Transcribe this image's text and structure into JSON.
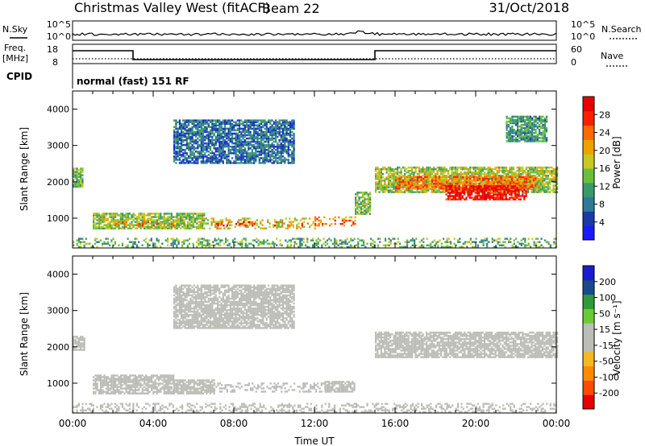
{
  "header": {
    "station": "Christmas Valley West (fitACF)",
    "beam": "Beam 22",
    "date": "31/Oct/2018"
  },
  "top_panels": {
    "nsky_label": "N.Sky",
    "nsky_ticks": [
      "10^5",
      "10^0"
    ],
    "nsearch_label": "N.Search",
    "nsearch_ticks": [
      "10^5",
      "10^0"
    ],
    "freq_label": "Freq.",
    "freq_unit": "[MHz]",
    "freq_ticks": [
      "18",
      "8"
    ],
    "nave_label": "Nave",
    "nave_ticks": [
      "60",
      "0"
    ],
    "cpid_label": "CPID",
    "cpid_text": "normal (fast) 151 RF"
  },
  "colors": {
    "power_scale": [
      "#1a1aff",
      "#1a3aa8",
      "#2e7a9a",
      "#3a9a6a",
      "#6abf3a",
      "#c8c820",
      "#f0a000",
      "#ff6a00",
      "#ff2000",
      "#e80000"
    ],
    "velocity_scale": [
      "#e80000",
      "#ff4a00",
      "#ff8a00",
      "#f5b820",
      "#bdbdb8",
      "#bdbdb8",
      "#6acc32",
      "#2e9a3a",
      "#1a4a8a",
      "#1a1ad0"
    ]
  },
  "chart_data": [
    {
      "type": "heatmap",
      "name": "power",
      "xlabel": "",
      "ylabel": "Slant Range [km]",
      "xlim": [
        0,
        24
      ],
      "ylim": [
        180,
        4500
      ],
      "yticks": [
        1000,
        2000,
        3000,
        4000
      ],
      "colorbar_label": "Power [dB]",
      "colorbar_ticks": [
        4,
        8,
        12,
        16,
        20,
        24,
        28
      ],
      "colorbar_range": [
        0,
        30
      ],
      "regions": [
        {
          "t": [
            0.0,
            0.5
          ],
          "r": [
            1850,
            2350
          ],
          "v": 13
        },
        {
          "t": [
            1.0,
            6.5
          ],
          "r": [
            700,
            1150
          ],
          "v": 14
        },
        {
          "t": [
            2.0,
            5.0
          ],
          "r": [
            780,
            900
          ],
          "v": 21
        },
        {
          "t": [
            6.5,
            12.0
          ],
          "r": [
            700,
            980
          ],
          "v": 17
        },
        {
          "t": [
            7.0,
            9.0
          ],
          "r": [
            780,
            880
          ],
          "v": 25
        },
        {
          "t": [
            10.0,
            11.5
          ],
          "r": [
            780,
            900
          ],
          "v": 24
        },
        {
          "t": [
            12.0,
            14.0
          ],
          "r": [
            780,
            1050
          ],
          "v": 22
        },
        {
          "t": [
            14.0,
            14.8
          ],
          "r": [
            1100,
            1700
          ],
          "v": 13
        },
        {
          "t": [
            15.0,
            24.0
          ],
          "r": [
            1700,
            2400
          ],
          "v": 15
        },
        {
          "t": [
            16.0,
            23.0
          ],
          "r": [
            1800,
            2150
          ],
          "v": 22
        },
        {
          "t": [
            18.5,
            22.5
          ],
          "r": [
            1500,
            1900
          ],
          "v": 28
        },
        {
          "t": [
            5.0,
            11.0
          ],
          "r": [
            2500,
            3700
          ],
          "v": 7
        },
        {
          "t": [
            21.5,
            23.5
          ],
          "r": [
            3100,
            3800
          ],
          "v": 10
        },
        {
          "t": [
            0.0,
            24.0
          ],
          "r": [
            190,
            420
          ],
          "v": 12
        }
      ]
    },
    {
      "type": "heatmap",
      "name": "velocity",
      "xlabel": "Time UT",
      "ylabel": "Slant Range [km]",
      "xlim": [
        0,
        24
      ],
      "ylim": [
        180,
        4500
      ],
      "yticks": [
        1000,
        2000,
        3000,
        4000
      ],
      "xticks": [
        "00:00",
        "04:00",
        "08:00",
        "12:00",
        "16:00",
        "20:00",
        "00:00"
      ],
      "colorbar_label": "Velocity [m s⁻¹]",
      "colorbar_ticks": [
        -200,
        -100,
        -50,
        -15,
        15,
        50,
        100,
        200
      ],
      "colorbar_range": [
        -250,
        250
      ],
      "regions": [
        {
          "t": [
            0.0,
            0.6
          ],
          "r": [
            1900,
            2300
          ],
          "v": 0
        },
        {
          "t": [
            1.0,
            5.0
          ],
          "r": [
            700,
            1200
          ],
          "v": 30
        },
        {
          "t": [
            5.0,
            7.0
          ],
          "r": [
            700,
            1100
          ],
          "v": 20
        },
        {
          "t": [
            7.0,
            12.5
          ],
          "r": [
            750,
            980
          ],
          "v": 0
        },
        {
          "t": [
            12.5,
            14.0
          ],
          "r": [
            750,
            1050
          ],
          "v": -40
        },
        {
          "t": [
            15.0,
            24.0
          ],
          "r": [
            1700,
            2400
          ],
          "v": 0
        },
        {
          "t": [
            5.0,
            11.0
          ],
          "r": [
            2500,
            3700
          ],
          "v": 5
        },
        {
          "t": [
            0.0,
            24.0
          ],
          "r": [
            190,
            420
          ],
          "v": -30
        }
      ]
    }
  ]
}
